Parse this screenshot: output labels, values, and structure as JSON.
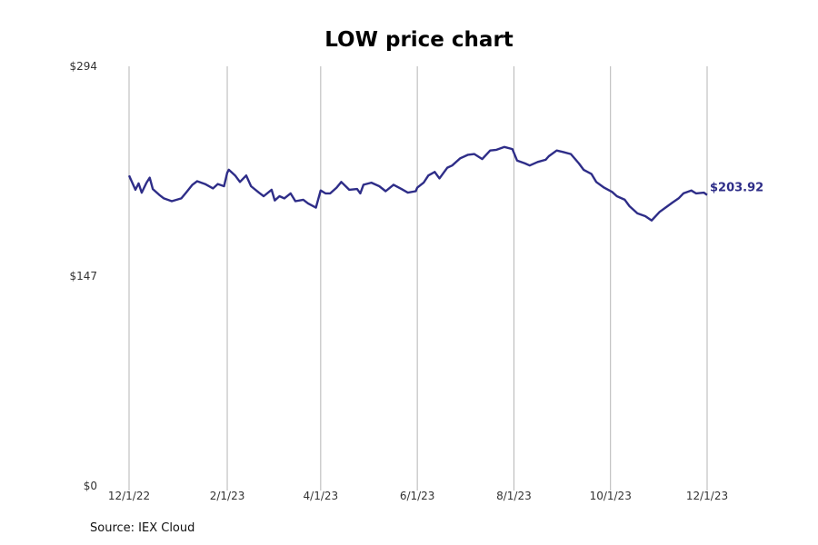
{
  "source": "Source: IEX Cloud",
  "colors": {
    "line": "#2e2d88",
    "grid": "#b5b5b5"
  },
  "chart_data": {
    "type": "line",
    "title": "LOW price chart",
    "xlabel": "",
    "ylabel": "",
    "ylim": [
      0,
      294
    ],
    "y_ticks": [
      {
        "value": 0,
        "label": "$0"
      },
      {
        "value": 147,
        "label": "$147"
      },
      {
        "value": 294,
        "label": "$294"
      }
    ],
    "x_range": [
      "2022-12-01",
      "2023-12-01"
    ],
    "x_ticks": [
      {
        "date": "2022-12-01",
        "label": "12/1/22"
      },
      {
        "date": "2023-02-01",
        "label": "2/1/23"
      },
      {
        "date": "2023-04-01",
        "label": "4/1/23"
      },
      {
        "date": "2023-06-01",
        "label": "6/1/23"
      },
      {
        "date": "2023-08-01",
        "label": "8/1/23"
      },
      {
        "date": "2023-10-01",
        "label": "10/1/23"
      },
      {
        "date": "2023-12-01",
        "label": "12/1/23"
      }
    ],
    "grid": "vertical",
    "end_label": "$203.92",
    "series": [
      {
        "x": [
          "2022-12-01",
          "2022-12-05",
          "2022-12-07",
          "2022-12-09",
          "2022-12-12",
          "2022-12-14",
          "2022-12-16",
          "2022-12-20",
          "2022-12-23",
          "2022-12-28",
          "2023-01-03",
          "2023-01-06",
          "2023-01-10",
          "2023-01-13",
          "2023-01-18",
          "2023-01-23",
          "2023-01-26",
          "2023-01-30",
          "2023-02-01",
          "2023-02-02",
          "2023-02-06",
          "2023-02-09",
          "2023-02-13",
          "2023-02-16",
          "2023-02-21",
          "2023-02-24",
          "2023-03-01",
          "2023-03-03",
          "2023-03-06",
          "2023-03-09",
          "2023-03-13",
          "2023-03-16",
          "2023-03-21",
          "2023-03-24",
          "2023-03-29",
          "2023-04-01",
          "2023-04-04",
          "2023-04-07",
          "2023-04-11",
          "2023-04-14",
          "2023-04-19",
          "2023-04-24",
          "2023-04-26",
          "2023-04-28",
          "2023-05-03",
          "2023-05-08",
          "2023-05-12",
          "2023-05-17",
          "2023-05-22",
          "2023-05-26",
          "2023-05-31",
          "2023-06-01",
          "2023-06-05",
          "2023-06-08",
          "2023-06-12",
          "2023-06-15",
          "2023-06-20",
          "2023-06-23",
          "2023-06-28",
          "2023-07-03",
          "2023-07-07",
          "2023-07-12",
          "2023-07-17",
          "2023-07-21",
          "2023-07-26",
          "2023-07-31",
          "2023-08-03",
          "2023-08-08",
          "2023-08-11",
          "2023-08-16",
          "2023-08-21",
          "2023-08-23",
          "2023-08-28",
          "2023-09-01",
          "2023-09-06",
          "2023-09-11",
          "2023-09-14",
          "2023-09-19",
          "2023-09-22",
          "2023-09-27",
          "2023-10-02",
          "2023-10-05",
          "2023-10-10",
          "2023-10-13",
          "2023-10-18",
          "2023-10-23",
          "2023-10-27",
          "2023-11-01",
          "2023-11-06",
          "2023-11-09",
          "2023-11-13",
          "2023-11-16",
          "2023-11-21",
          "2023-11-24",
          "2023-11-29",
          "2023-12-01"
        ],
        "values": [
          217.5,
          207.5,
          212,
          205.5,
          212.5,
          216,
          208,
          204,
          201.5,
          199.5,
          201.5,
          205.5,
          211,
          213.5,
          211.5,
          208.5,
          211.5,
          210,
          219.5,
          221.5,
          217.5,
          213,
          217.5,
          210,
          205.5,
          203,
          207.5,
          200,
          203,
          201.5,
          205,
          199.5,
          200.5,
          198,
          195,
          207,
          205,
          205,
          209,
          213,
          207.5,
          208,
          205,
          211,
          212.5,
          210,
          206.5,
          211,
          208,
          205.5,
          206.5,
          209,
          212.5,
          217.5,
          220,
          215.5,
          223,
          224.5,
          229.5,
          232,
          232.5,
          229,
          235,
          235.5,
          237.5,
          236,
          228,
          226,
          224.5,
          227,
          228.5,
          231,
          235,
          234,
          232.5,
          226,
          221.5,
          218.5,
          213,
          209,
          206,
          203,
          200.5,
          196,
          191,
          189,
          186,
          192,
          196,
          198.5,
          201.5,
          205,
          207,
          205,
          205.5,
          203.92
        ]
      }
    ]
  }
}
